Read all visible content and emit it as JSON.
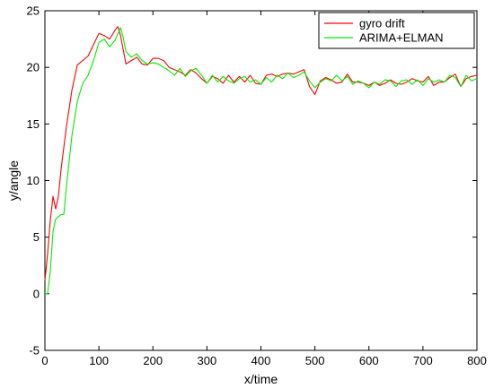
{
  "chart_data": {
    "type": "line",
    "xlabel": "x/time",
    "ylabel": "y/angle",
    "xlim": [
      0,
      800
    ],
    "ylim": [
      -5,
      25
    ],
    "xticks": [
      0,
      100,
      200,
      300,
      400,
      500,
      600,
      700,
      800
    ],
    "yticks": [
      -5,
      0,
      5,
      10,
      15,
      20,
      25
    ],
    "xtick_labels": [
      "0",
      "100",
      "200",
      "300",
      "400",
      "500",
      "600",
      "700",
      "800"
    ],
    "ytick_labels": [
      "-5",
      "0",
      "5",
      "10",
      "15",
      "20",
      "25"
    ],
    "grid": false,
    "legend_position": "top-right",
    "series": [
      {
        "name": "gyro drift",
        "color": "#ff0000",
        "x": [
          0,
          5,
          10,
          15,
          20,
          25,
          30,
          40,
          50,
          60,
          70,
          80,
          90,
          100,
          110,
          120,
          130,
          135,
          140,
          150,
          160,
          170,
          180,
          190,
          200,
          210,
          220,
          230,
          240,
          250,
          260,
          270,
          280,
          290,
          300,
          310,
          320,
          330,
          340,
          350,
          360,
          370,
          380,
          390,
          400,
          410,
          420,
          430,
          440,
          450,
          460,
          470,
          480,
          490,
          500,
          510,
          520,
          530,
          540,
          550,
          560,
          570,
          580,
          590,
          600,
          610,
          620,
          630,
          640,
          650,
          660,
          670,
          680,
          690,
          700,
          710,
          720,
          730,
          740,
          750,
          760,
          770,
          780,
          790,
          800
        ],
        "y": [
          1.2,
          3.5,
          6.5,
          8.6,
          7.5,
          8.6,
          11.0,
          14.8,
          18.0,
          20.2,
          20.6,
          21.0,
          22.0,
          23.0,
          22.8,
          22.5,
          23.3,
          23.6,
          22.8,
          20.3,
          20.6,
          20.9,
          20.3,
          20.2,
          20.8,
          20.8,
          20.6,
          20.0,
          19.8,
          19.6,
          19.3,
          19.8,
          19.5,
          19.0,
          18.6,
          19.2,
          19.0,
          18.6,
          19.3,
          18.7,
          19.2,
          18.7,
          19.3,
          18.6,
          18.5,
          19.3,
          19.4,
          19.2,
          19.4,
          19.5,
          19.4,
          19.6,
          19.8,
          18.3,
          17.6,
          18.8,
          19.1,
          18.9,
          18.6,
          18.7,
          19.4,
          18.7,
          18.7,
          18.6,
          18.4,
          18.7,
          18.4,
          18.6,
          18.9,
          18.6,
          18.5,
          18.7,
          19.0,
          18.8,
          18.7,
          19.2,
          18.4,
          18.7,
          18.7,
          19.1,
          19.4,
          18.3,
          19.0,
          19.2,
          19.3
        ]
      },
      {
        "name": "ARIMA+ELMAN",
        "color": "#00ee00",
        "x": [
          0,
          5,
          10,
          15,
          20,
          25,
          30,
          35,
          40,
          50,
          60,
          70,
          80,
          90,
          100,
          110,
          120,
          130,
          140,
          145,
          150,
          160,
          170,
          180,
          190,
          200,
          210,
          220,
          230,
          240,
          250,
          260,
          270,
          280,
          290,
          300,
          310,
          320,
          330,
          340,
          350,
          360,
          370,
          380,
          390,
          400,
          410,
          420,
          430,
          440,
          450,
          460,
          470,
          480,
          490,
          500,
          510,
          520,
          530,
          540,
          550,
          560,
          570,
          580,
          590,
          600,
          610,
          620,
          630,
          640,
          650,
          660,
          670,
          680,
          690,
          700,
          710,
          720,
          730,
          740,
          750,
          760,
          770,
          780,
          790,
          800
        ],
        "y": [
          0.0,
          0.0,
          2.0,
          5.5,
          6.6,
          6.8,
          7.0,
          7.0,
          9.5,
          14.0,
          17.0,
          18.6,
          19.3,
          20.6,
          22.2,
          22.5,
          21.8,
          22.4,
          23.5,
          22.6,
          21.4,
          20.9,
          21.2,
          20.6,
          20.3,
          20.4,
          20.3,
          20.0,
          19.7,
          19.3,
          19.9,
          19.2,
          19.7,
          19.9,
          19.3,
          18.6,
          19.3,
          18.7,
          19.2,
          18.8,
          18.6,
          19.0,
          19.2,
          18.7,
          18.9,
          18.5,
          19.1,
          18.7,
          19.3,
          19.0,
          19.5,
          19.1,
          19.3,
          19.6,
          18.8,
          18.2,
          18.7,
          19.0,
          18.8,
          19.3,
          18.8,
          19.2,
          18.5,
          18.8,
          18.6,
          18.2,
          18.7,
          18.5,
          18.9,
          18.8,
          18.3,
          18.8,
          18.9,
          18.5,
          18.9,
          18.4,
          19.0,
          18.7,
          18.9,
          18.7,
          19.3,
          19.1,
          18.3,
          19.3,
          18.8,
          19.0
        ]
      }
    ]
  }
}
